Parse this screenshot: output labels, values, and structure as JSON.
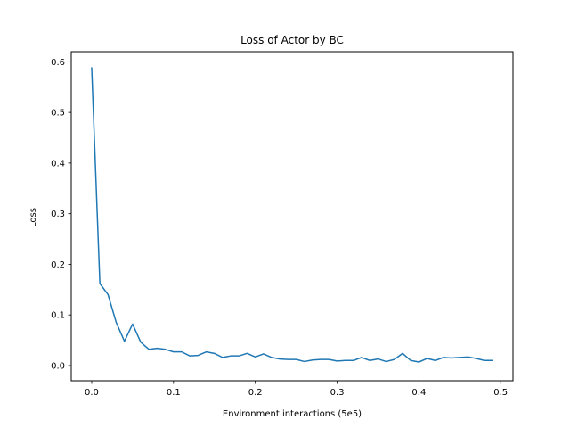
{
  "chart_data": {
    "type": "line",
    "title": "Loss of Actor by BC",
    "xlabel": "Environment interactions (5e5)",
    "ylabel": "Loss",
    "xlim": [
      -0.025,
      0.515
    ],
    "ylim": [
      -0.03,
      0.62
    ],
    "xticks": [
      0.0,
      0.1,
      0.2,
      0.3,
      0.4,
      0.5
    ],
    "xtick_labels": [
      "0.0",
      "0.1",
      "0.2",
      "0.3",
      "0.4",
      "0.5"
    ],
    "yticks": [
      0.0,
      0.1,
      0.2,
      0.3,
      0.4,
      0.5,
      0.6
    ],
    "ytick_labels": [
      "0.0",
      "0.1",
      "0.2",
      "0.3",
      "0.4",
      "0.5",
      "0.6"
    ],
    "grid": false,
    "series": [
      {
        "color": "#1f77b4",
        "x": [
          0.0,
          0.01,
          0.02,
          0.03,
          0.04,
          0.05,
          0.06,
          0.07,
          0.08,
          0.09,
          0.1,
          0.11,
          0.12,
          0.13,
          0.14,
          0.15,
          0.16,
          0.17,
          0.18,
          0.19,
          0.2,
          0.21,
          0.22,
          0.23,
          0.24,
          0.25,
          0.26,
          0.27,
          0.28,
          0.29,
          0.3,
          0.31,
          0.32,
          0.33,
          0.34,
          0.35,
          0.36,
          0.37,
          0.38,
          0.39,
          0.4,
          0.41,
          0.42,
          0.43,
          0.44,
          0.45,
          0.46,
          0.47,
          0.48,
          0.49
        ],
        "y": [
          0.588,
          0.162,
          0.14,
          0.085,
          0.048,
          0.082,
          0.046,
          0.032,
          0.034,
          0.032,
          0.027,
          0.027,
          0.019,
          0.02,
          0.027,
          0.024,
          0.016,
          0.019,
          0.019,
          0.024,
          0.017,
          0.023,
          0.016,
          0.013,
          0.012,
          0.012,
          0.008,
          0.011,
          0.012,
          0.012,
          0.009,
          0.01,
          0.01,
          0.016,
          0.01,
          0.013,
          0.008,
          0.012,
          0.024,
          0.01,
          0.007,
          0.014,
          0.01,
          0.016,
          0.015,
          0.016,
          0.017,
          0.014,
          0.01,
          0.01
        ]
      }
    ]
  }
}
